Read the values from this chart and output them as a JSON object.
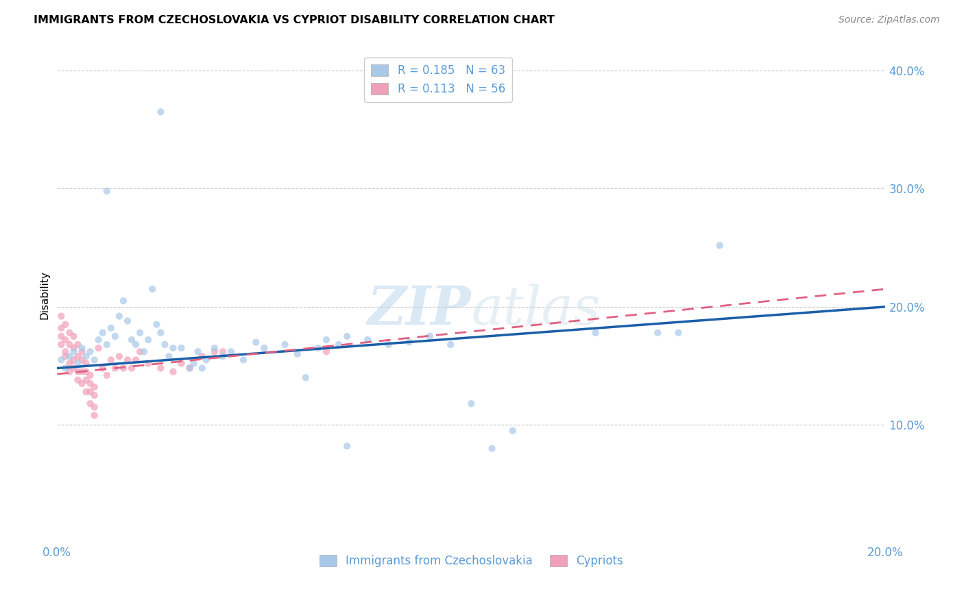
{
  "title": "IMMIGRANTS FROM CZECHOSLOVAKIA VS CYPRIOT DISABILITY CORRELATION CHART",
  "source": "Source: ZipAtlas.com",
  "ylabel": "Disability",
  "xlim": [
    0.0,
    0.2
  ],
  "ylim": [
    0.0,
    0.42
  ],
  "yticks": [
    0.1,
    0.2,
    0.3,
    0.4
  ],
  "ytick_labels": [
    "10.0%",
    "20.0%",
    "30.0%",
    "40.0%"
  ],
  "xticks": [
    0.0,
    0.05,
    0.1,
    0.15,
    0.2
  ],
  "xtick_labels": [
    "0.0%",
    "",
    "",
    "",
    "20.0%"
  ],
  "watermark": "ZIPatlas",
  "tick_color": "#5b9bd5",
  "grid_color": "#c8c8c8",
  "blue_scatter": [
    [
      0.001,
      0.155
    ],
    [
      0.002,
      0.148
    ],
    [
      0.003,
      0.158
    ],
    [
      0.004,
      0.162
    ],
    [
      0.005,
      0.152
    ],
    [
      0.006,
      0.165
    ],
    [
      0.007,
      0.158
    ],
    [
      0.008,
      0.162
    ],
    [
      0.009,
      0.155
    ],
    [
      0.01,
      0.172
    ],
    [
      0.011,
      0.178
    ],
    [
      0.012,
      0.168
    ],
    [
      0.013,
      0.182
    ],
    [
      0.014,
      0.175
    ],
    [
      0.015,
      0.192
    ],
    [
      0.016,
      0.205
    ],
    [
      0.017,
      0.188
    ],
    [
      0.018,
      0.172
    ],
    [
      0.019,
      0.168
    ],
    [
      0.02,
      0.178
    ],
    [
      0.021,
      0.162
    ],
    [
      0.022,
      0.172
    ],
    [
      0.023,
      0.215
    ],
    [
      0.024,
      0.185
    ],
    [
      0.025,
      0.178
    ],
    [
      0.026,
      0.168
    ],
    [
      0.027,
      0.158
    ],
    [
      0.028,
      0.165
    ],
    [
      0.03,
      0.165
    ],
    [
      0.032,
      0.148
    ],
    [
      0.033,
      0.152
    ],
    [
      0.034,
      0.162
    ],
    [
      0.035,
      0.148
    ],
    [
      0.036,
      0.155
    ],
    [
      0.038,
      0.165
    ],
    [
      0.04,
      0.158
    ],
    [
      0.042,
      0.162
    ],
    [
      0.045,
      0.155
    ],
    [
      0.048,
      0.17
    ],
    [
      0.05,
      0.165
    ],
    [
      0.055,
      0.168
    ],
    [
      0.058,
      0.16
    ],
    [
      0.06,
      0.14
    ],
    [
      0.063,
      0.165
    ],
    [
      0.065,
      0.172
    ],
    [
      0.068,
      0.168
    ],
    [
      0.07,
      0.175
    ],
    [
      0.075,
      0.172
    ],
    [
      0.08,
      0.168
    ],
    [
      0.085,
      0.17
    ],
    [
      0.09,
      0.175
    ],
    [
      0.095,
      0.168
    ],
    [
      0.1,
      0.118
    ],
    [
      0.105,
      0.08
    ],
    [
      0.11,
      0.095
    ],
    [
      0.13,
      0.178
    ],
    [
      0.145,
      0.178
    ],
    [
      0.15,
      0.178
    ],
    [
      0.16,
      0.252
    ],
    [
      0.025,
      0.365
    ],
    [
      0.012,
      0.298
    ],
    [
      0.07,
      0.082
    ]
  ],
  "pink_scatter": [
    [
      0.001,
      0.192
    ],
    [
      0.001,
      0.175
    ],
    [
      0.001,
      0.168
    ],
    [
      0.001,
      0.182
    ],
    [
      0.002,
      0.162
    ],
    [
      0.002,
      0.172
    ],
    [
      0.002,
      0.158
    ],
    [
      0.002,
      0.185
    ],
    [
      0.003,
      0.178
    ],
    [
      0.003,
      0.152
    ],
    [
      0.003,
      0.168
    ],
    [
      0.003,
      0.145
    ],
    [
      0.004,
      0.165
    ],
    [
      0.004,
      0.155
    ],
    [
      0.004,
      0.148
    ],
    [
      0.004,
      0.175
    ],
    [
      0.005,
      0.158
    ],
    [
      0.005,
      0.168
    ],
    [
      0.005,
      0.145
    ],
    [
      0.005,
      0.138
    ],
    [
      0.006,
      0.162
    ],
    [
      0.006,
      0.155
    ],
    [
      0.006,
      0.145
    ],
    [
      0.006,
      0.135
    ],
    [
      0.007,
      0.152
    ],
    [
      0.007,
      0.145
    ],
    [
      0.007,
      0.138
    ],
    [
      0.007,
      0.128
    ],
    [
      0.008,
      0.142
    ],
    [
      0.008,
      0.135
    ],
    [
      0.008,
      0.128
    ],
    [
      0.008,
      0.118
    ],
    [
      0.009,
      0.132
    ],
    [
      0.009,
      0.125
    ],
    [
      0.009,
      0.115
    ],
    [
      0.009,
      0.108
    ],
    [
      0.01,
      0.165
    ],
    [
      0.011,
      0.148
    ],
    [
      0.012,
      0.142
    ],
    [
      0.013,
      0.155
    ],
    [
      0.014,
      0.148
    ],
    [
      0.015,
      0.158
    ],
    [
      0.016,
      0.148
    ],
    [
      0.017,
      0.155
    ],
    [
      0.018,
      0.148
    ],
    [
      0.019,
      0.155
    ],
    [
      0.02,
      0.162
    ],
    [
      0.022,
      0.152
    ],
    [
      0.025,
      0.148
    ],
    [
      0.028,
      0.145
    ],
    [
      0.03,
      0.152
    ],
    [
      0.032,
      0.148
    ],
    [
      0.035,
      0.158
    ],
    [
      0.038,
      0.162
    ],
    [
      0.04,
      0.162
    ],
    [
      0.065,
      0.162
    ]
  ],
  "blue_line_x": [
    0.0,
    0.2
  ],
  "blue_line_y": [
    0.148,
    0.2
  ],
  "pink_line_x": [
    0.0,
    0.2
  ],
  "pink_line_y": [
    0.143,
    0.215
  ],
  "blue_line_color": "#1a5fa8",
  "pink_line_color": "#e06080",
  "scatter_blue_color": "#a8c8e8",
  "scatter_pink_color": "#f0a0b8",
  "scatter_alpha": 0.7,
  "scatter_size": 55
}
